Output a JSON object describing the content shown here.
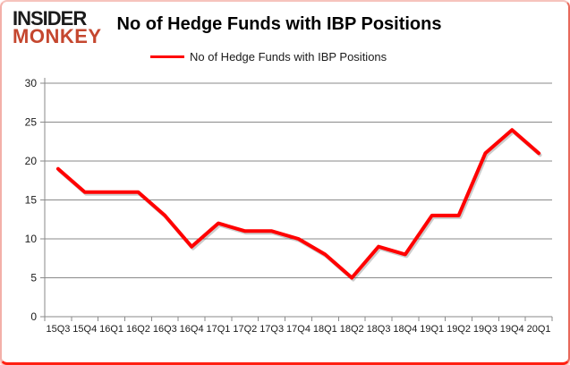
{
  "logo": {
    "line1": "INSIDER",
    "line2": "MONKEY",
    "line1_color": "#1b1b1b",
    "line2_color": "#c5472f"
  },
  "header": {
    "title": "No of Hedge Funds with IBP Positions"
  },
  "legend": {
    "label": "No of Hedge Funds with IBP Positions",
    "line_color": "#ff0000"
  },
  "chart_data": {
    "type": "line",
    "title": "No of Hedge Funds with IBP Positions",
    "categories": [
      "15Q3",
      "15Q4",
      "16Q1",
      "16Q2",
      "16Q3",
      "16Q4",
      "17Q1",
      "17Q2",
      "17Q3",
      "17Q4",
      "18Q1",
      "18Q2",
      "18Q3",
      "18Q4",
      "19Q1",
      "19Q2",
      "19Q3",
      "19Q4",
      "20Q1"
    ],
    "series": [
      {
        "name": "No of Hedge Funds with IBP Positions",
        "values": [
          19,
          16,
          16,
          16,
          13,
          9,
          12,
          11,
          11,
          10,
          8,
          5,
          9,
          8,
          13,
          13,
          21,
          24,
          21
        ],
        "color": "#ff0000"
      }
    ],
    "xlabel": "",
    "ylabel": "",
    "ylim": [
      0,
      30
    ],
    "yticks": [
      0,
      5,
      10,
      15,
      20,
      25,
      30
    ],
    "grid": true,
    "legend_position": "top-center",
    "axis_color": "#8a8a8a",
    "tick_label_color": "#1a1a1a",
    "line_width": 4
  }
}
